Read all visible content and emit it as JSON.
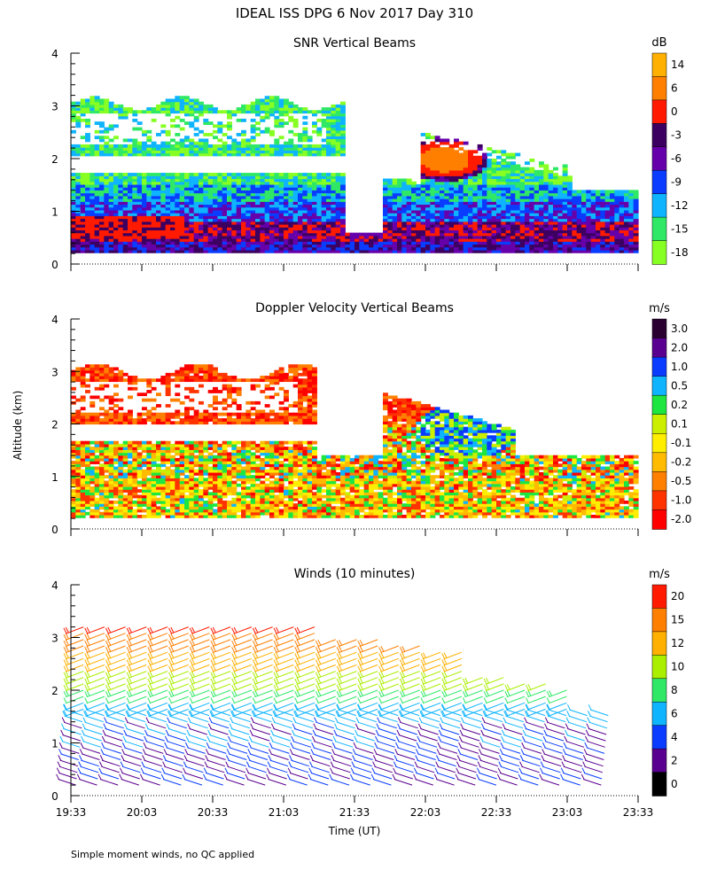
{
  "figure_title": "IDEAL ISS DPG    6 Nov 2017 Day 310",
  "shared_ylabel": "Altitude (km)",
  "shared_xlabel": "Time (UT)",
  "x_ticks": [
    "19:33",
    "20:03",
    "20:33",
    "21:03",
    "21:33",
    "22:03",
    "22:33",
    "23:03",
    "23:33"
  ],
  "y_ticks": [
    "0",
    "1",
    "2",
    "3",
    "4"
  ],
  "footer_note": "Simple moment winds, no QC applied",
  "chart_data": [
    {
      "type": "heatmap",
      "title": "SNR Vertical Beams",
      "xlabel": "",
      "ylabel": "Altitude (km)",
      "xlim": [
        "19:33",
        "23:33"
      ],
      "ylim": [
        0,
        4
      ],
      "colorbar": {
        "unit": "dB",
        "labels": [
          "14",
          "6",
          "0",
          "-3",
          "-6",
          "-9",
          "-12",
          "-15",
          "-18"
        ],
        "colors": [
          "#ffb000",
          "#ff7f00",
          "#ff1a00",
          "#3c0060",
          "#6600aa",
          "#0a3cff",
          "#0fb4ff",
          "#2ee866",
          "#88ff22"
        ]
      }
    },
    {
      "type": "heatmap",
      "title": "Doppler Velocity Vertical Beams",
      "xlabel": "",
      "ylabel": "Altitude (km)",
      "xlim": [
        "19:33",
        "23:33"
      ],
      "ylim": [
        0,
        4
      ],
      "colorbar": {
        "unit": "m/s",
        "labels": [
          "3.0",
          "2.0",
          "1.0",
          "0.5",
          "0.2",
          "0.1",
          "-0.1",
          "-0.2",
          "-0.5",
          "-1.0",
          "-2.0"
        ],
        "colors": [
          "#2a0030",
          "#5a0090",
          "#0a3cff",
          "#0fb4ff",
          "#1ee640",
          "#ccee00",
          "#ffee00",
          "#ffbb00",
          "#ff8000",
          "#ff3300",
          "#ff0000"
        ]
      }
    },
    {
      "type": "scatter",
      "title": "Winds (10 minutes)",
      "xlabel": "Time (UT)",
      "ylabel": "Altitude (km)",
      "xlim": [
        "19:33",
        "23:33"
      ],
      "ylim": [
        0,
        4
      ],
      "colorbar": {
        "unit": "m/s",
        "labels": [
          "20",
          "15",
          "12",
          "10",
          "8",
          "6",
          "4",
          "2",
          "0"
        ],
        "colors": [
          "#ff1a00",
          "#ff7f00",
          "#ffb000",
          "#aaee00",
          "#2ee866",
          "#0fb4ff",
          "#0a3cff",
          "#5a0090",
          "#000000"
        ]
      }
    }
  ]
}
